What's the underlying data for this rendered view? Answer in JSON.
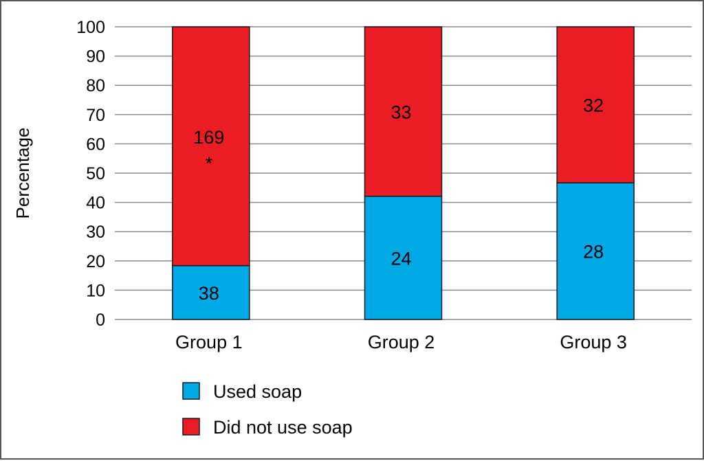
{
  "chart_data": {
    "type": "bar",
    "stacked": true,
    "categories": [
      "Group 1",
      "Group 2",
      "Group 3"
    ],
    "series": [
      {
        "name": "Used soap",
        "color": "#00a9e6",
        "values": [
          18.4,
          42.1,
          46.7
        ],
        "labels": [
          "38",
          "24",
          "28"
        ]
      },
      {
        "name": "Did not use soap",
        "color": "#ec1c24",
        "values": [
          81.6,
          57.9,
          53.3
        ],
        "labels": [
          "169",
          "33",
          "32"
        ]
      }
    ],
    "annotations": [
      {
        "category": "Group 1",
        "series": "Did not use soap",
        "text": "*"
      }
    ],
    "ylabel": "Percentage",
    "ylim": [
      0,
      100
    ],
    "yticks": [
      0,
      10,
      20,
      30,
      40,
      50,
      60,
      70,
      80,
      90,
      100
    ],
    "grid": true,
    "legend": "bottom"
  }
}
